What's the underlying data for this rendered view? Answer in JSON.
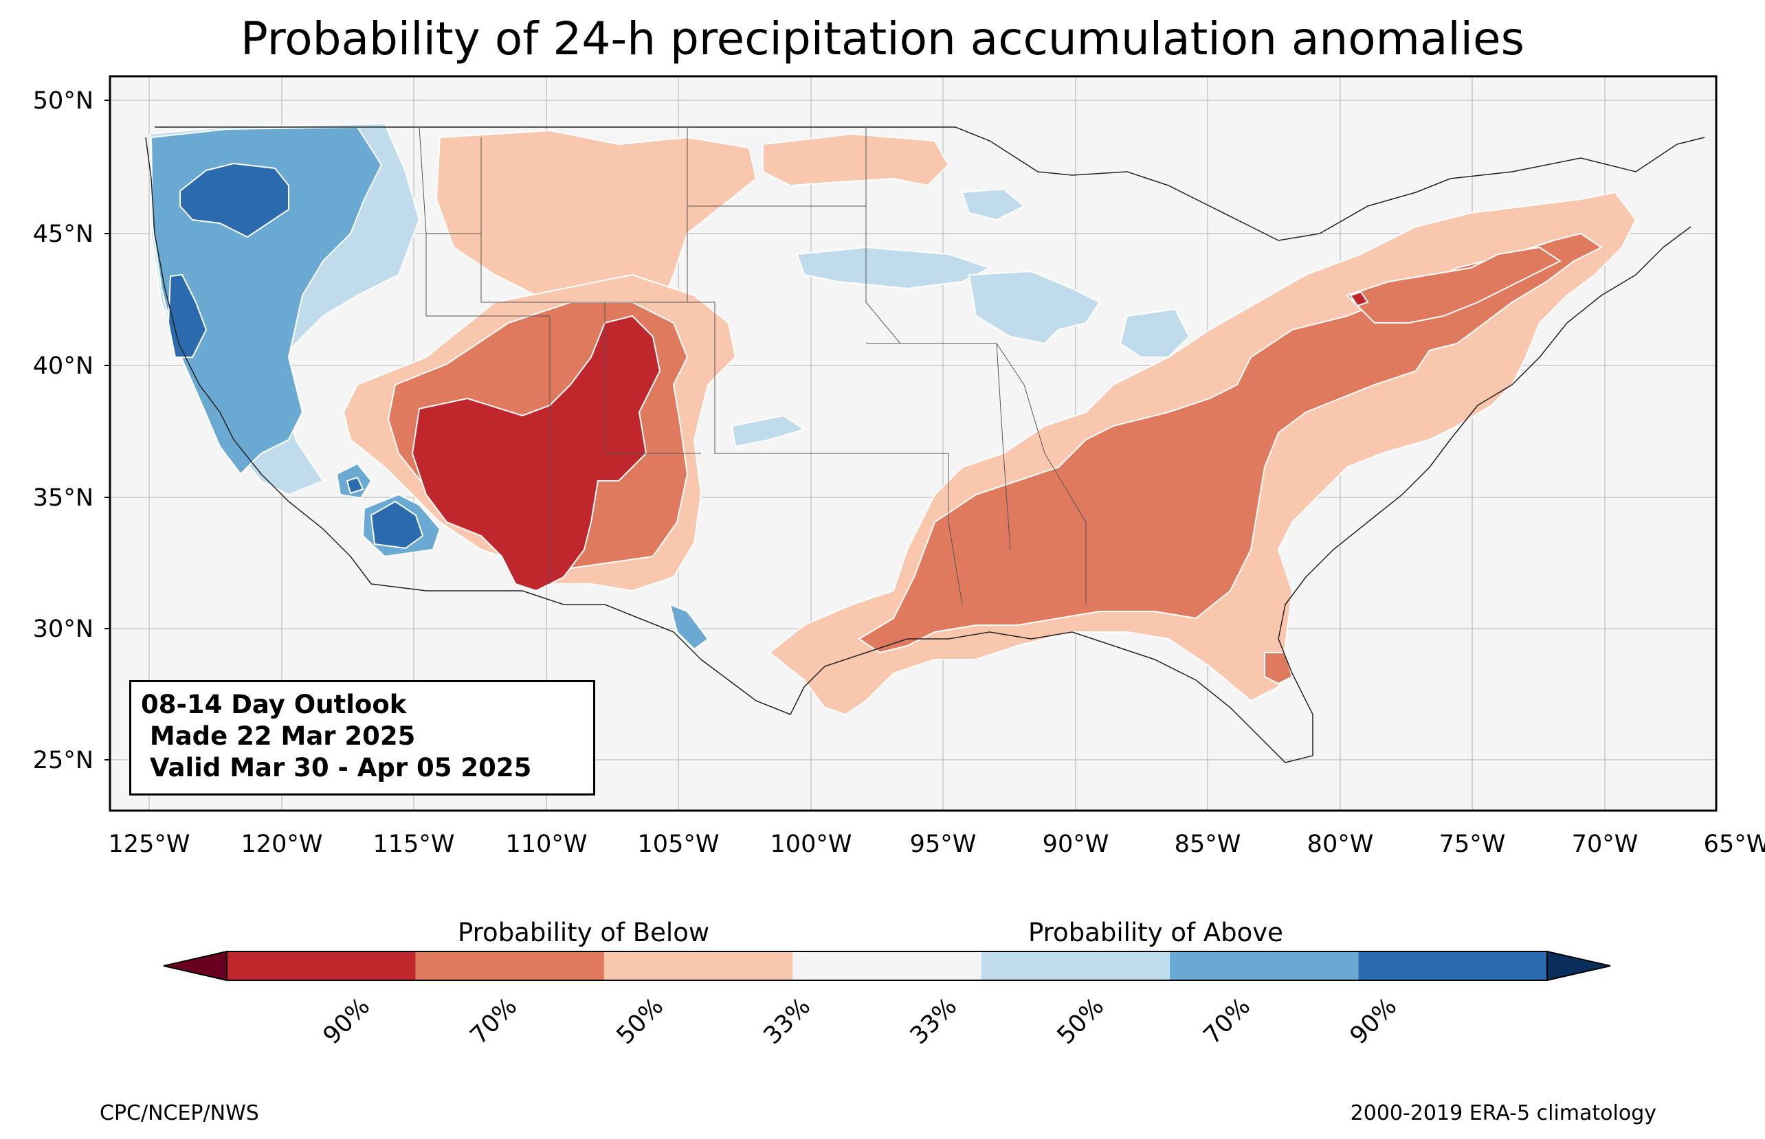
{
  "title": "Probability of 24-h precipitation accumulation anomalies",
  "map": {
    "lat_ticks": [
      "50°N",
      "45°N",
      "40°N",
      "35°N",
      "30°N",
      "25°N"
    ],
    "lon_ticks": [
      "125°W",
      "120°W",
      "115°W",
      "110°W",
      "105°W",
      "100°W",
      "95°W",
      "90°W",
      "85°W",
      "80°W",
      "75°W",
      "70°W",
      "65°W"
    ],
    "extent": {
      "lon_min": -126.5,
      "lon_max": -65,
      "lat_min": 23,
      "lat_max": 51
    },
    "background_color": "#f5f5f5",
    "grid": true
  },
  "info_box": {
    "line1": "08-14 Day Outlook",
    "line2": " Made 22 Mar 2025",
    "line3": " Valid Mar 30 - Apr 05 2025"
  },
  "colorbar": {
    "below_label": "Probability of Below",
    "above_label": "Probability of Above",
    "ticks": [
      "90%",
      "70%",
      "50%",
      "33%",
      "33%",
      "50%",
      "70%",
      "90%"
    ],
    "colors": [
      "#67001f",
      "#b2182b",
      "#d6604d",
      "#f4a582",
      "#fddbc7",
      "#f7f7f7",
      "#d1e5f0",
      "#92c5de",
      "#4393c3",
      "#2166ac",
      "#053061"
    ],
    "bin_colors": [
      "#6a0020",
      "#c0272d",
      "#e07a5f",
      "#f8c7ad",
      "#f4f4f4",
      "#c0dcec",
      "#6aaad2",
      "#2a6aad",
      "#0a2e5c"
    ]
  },
  "credits": {
    "left": "CPC/NCEP/NWS",
    "right": "2000-2019 ERA-5 climatology"
  }
}
